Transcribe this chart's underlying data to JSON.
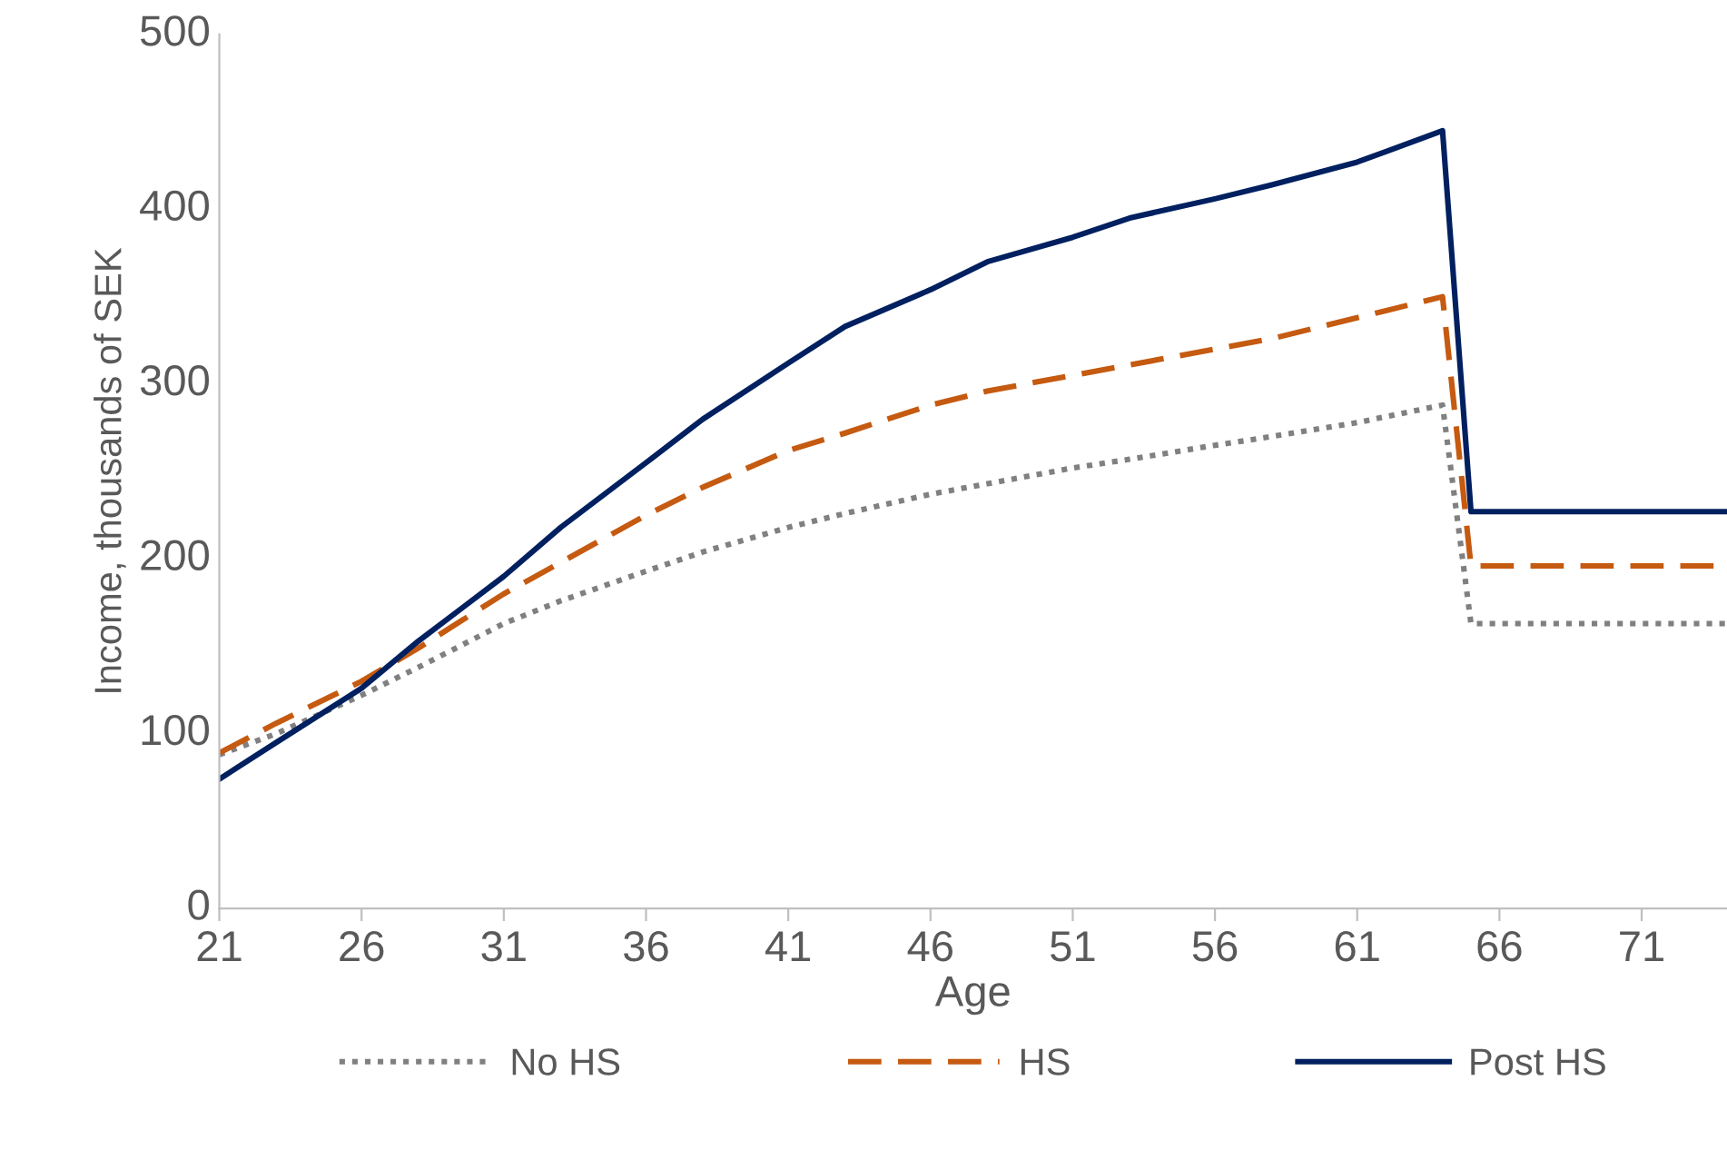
{
  "chart_data": {
    "type": "line",
    "xlabel": "Age",
    "ylabel": "Income, thousands of SEK",
    "xlim": [
      21,
      74
    ],
    "xticks": [
      21,
      26,
      31,
      36,
      41,
      46,
      51,
      56,
      61,
      66,
      71
    ],
    "ylim": [
      0,
      500
    ],
    "yticks": [
      0,
      100,
      200,
      300,
      400,
      500
    ],
    "grid": false,
    "legend": "bottom",
    "marker": "none",
    "series": [
      {
        "name": "No HS",
        "color": "#808080",
        "line_style": "dotted",
        "x": [
          21,
          23,
          26,
          28,
          31,
          33,
          36,
          38,
          41,
          43,
          46,
          48,
          51,
          53,
          56,
          58,
          61,
          64,
          65,
          74
        ],
        "values": [
          88,
          100,
          122,
          138,
          163,
          176,
          193,
          204,
          218,
          226,
          237,
          243,
          252,
          257,
          265,
          270,
          278,
          288,
          163,
          163
        ]
      },
      {
        "name": "HS",
        "color": "#c55a11",
        "line_style": "dashed",
        "x": [
          21,
          23,
          26,
          28,
          31,
          33,
          36,
          38,
          41,
          43,
          46,
          48,
          51,
          53,
          56,
          58,
          61,
          64,
          65,
          74
        ],
        "values": [
          89,
          106,
          130,
          149,
          180,
          198,
          225,
          241,
          262,
          272,
          288,
          296,
          305,
          311,
          320,
          326,
          338,
          350,
          196,
          196
        ]
      },
      {
        "name": "Post HS",
        "color": "#002060",
        "line_style": "solid",
        "x": [
          21,
          23,
          26,
          28,
          31,
          33,
          36,
          38,
          41,
          43,
          46,
          48,
          51,
          53,
          56,
          58,
          61,
          64,
          65,
          74
        ],
        "values": [
          74,
          95,
          126,
          153,
          190,
          218,
          255,
          280,
          312,
          333,
          354,
          370,
          384,
          395,
          406,
          414,
          427,
          445,
          227,
          227
        ]
      }
    ]
  }
}
